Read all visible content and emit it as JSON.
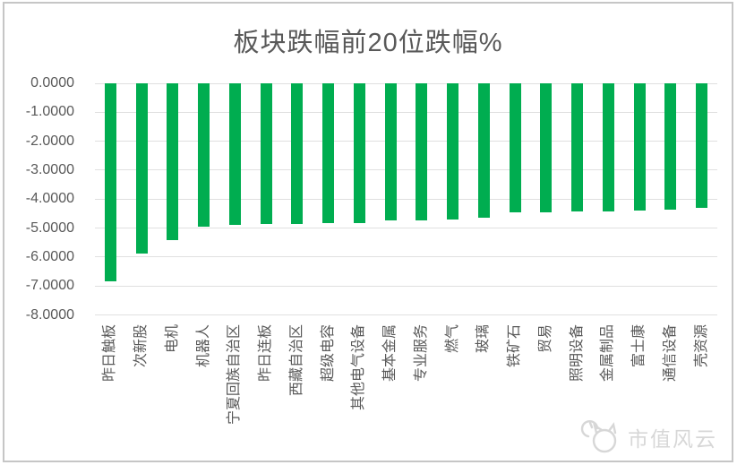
{
  "window": {
    "background": "#ffffff",
    "border_color": "#c6c6c6"
  },
  "chart_data": {
    "type": "bar",
    "title": "板块跌幅前20位跌幅%",
    "orientation": "vertical",
    "categories": [
      "昨日触板",
      "次新股",
      "电机",
      "机器人",
      "宁夏回族自治区",
      "昨日连板",
      "西藏自治区",
      "超级电容",
      "其他电气设备",
      "基本金属",
      "专业服务",
      "燃气",
      "玻璃",
      "铁矿石",
      "贸易",
      "照明设备",
      "金属制品",
      "富士康",
      "通信设备",
      "壳资源"
    ],
    "values": [
      -6.82,
      -5.87,
      -5.41,
      -4.96,
      -4.88,
      -4.86,
      -4.84,
      -4.83,
      -4.81,
      -4.74,
      -4.72,
      -4.7,
      -4.65,
      -4.46,
      -4.44,
      -4.43,
      -4.42,
      -4.4,
      -4.36,
      -4.29
    ],
    "ylim": [
      -8,
      0
    ],
    "y_ticks": [
      "0.0000",
      "-1.0000",
      "-2.0000",
      "-3.0000",
      "-4.0000",
      "-5.0000",
      "-6.0000",
      "-7.0000",
      "-8.0000"
    ],
    "grid": "horizontal",
    "legend": "none",
    "bar_color": "#00ad50",
    "gridline_color": "#e0e0e0",
    "text_color": "#595959"
  },
  "watermark": {
    "text": "市值风云",
    "logo": "cat-face-logo",
    "color": "#d7d7d7"
  }
}
